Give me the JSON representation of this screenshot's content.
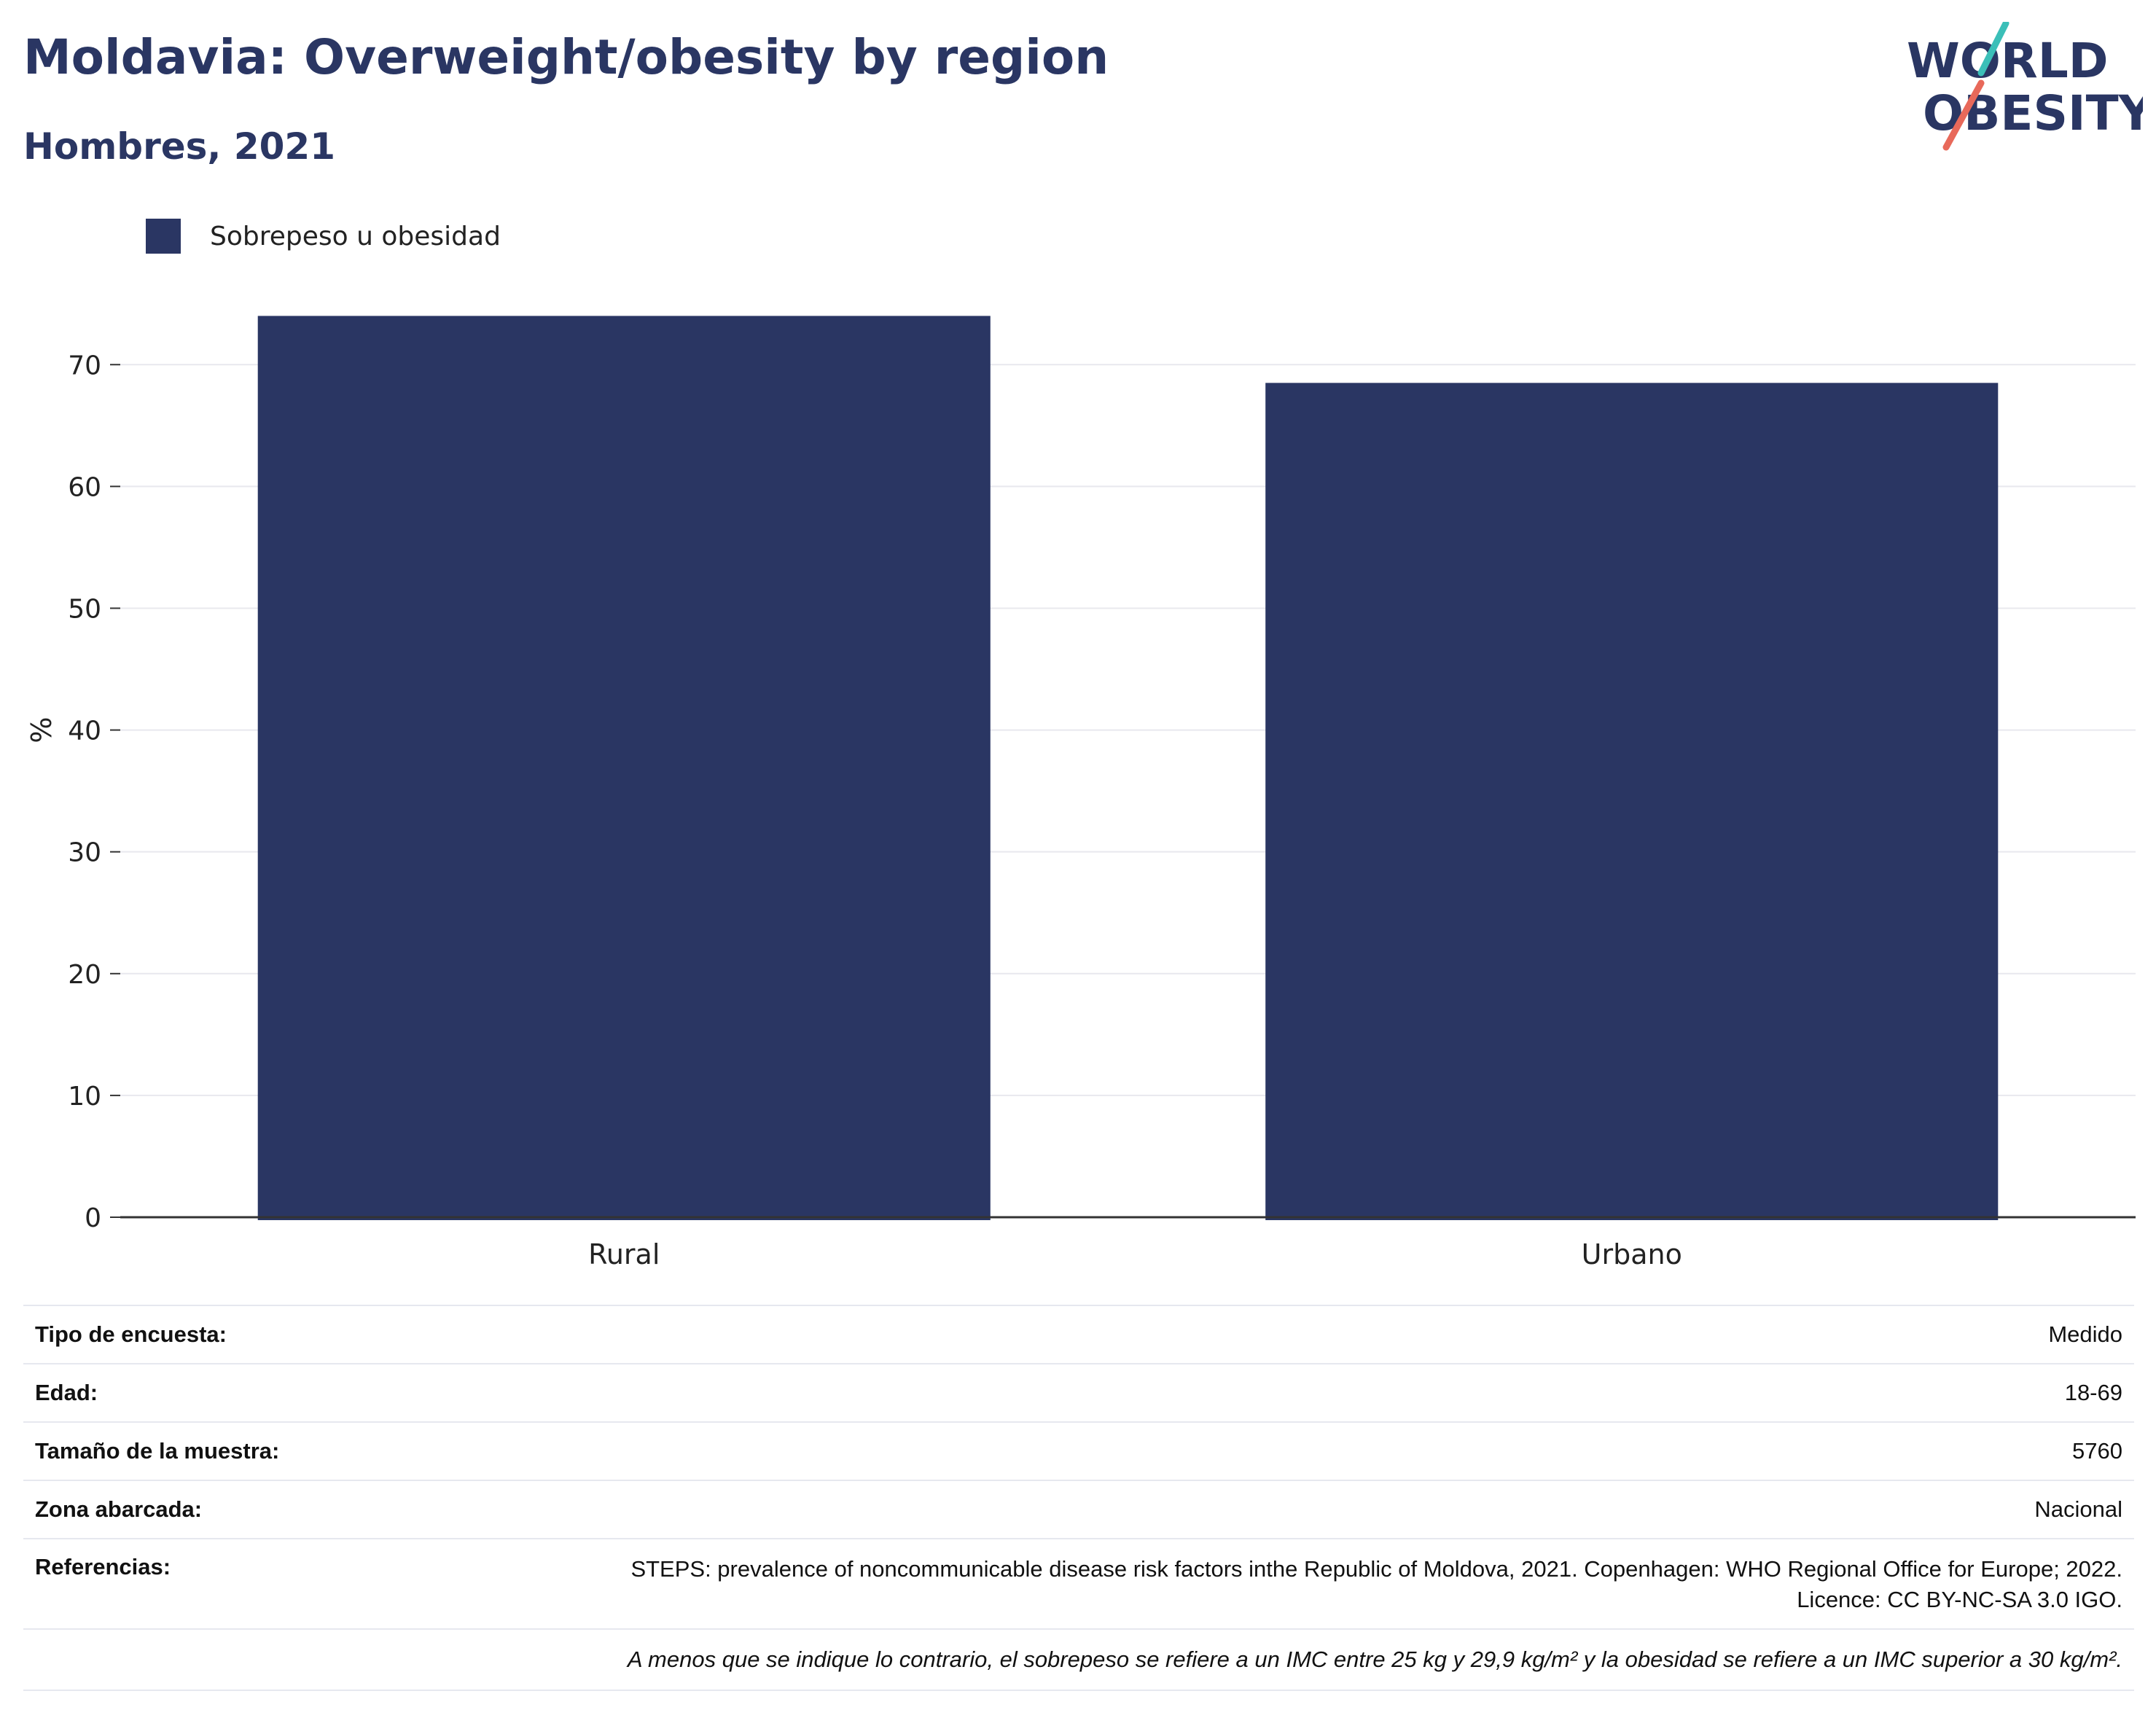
{
  "header": {
    "title": "Moldavia: Overweight/obesity by region",
    "subtitle": "Hombres, 2021"
  },
  "logo": {
    "line1": "WORLD",
    "line2": "OBESITY",
    "colors": {
      "text": "#2a3663",
      "slash_top": "#3bbfb8",
      "slash_bottom": "#e8695a"
    }
  },
  "legend": {
    "label": "Sobrepeso u obesidad",
    "color": "#2a3663"
  },
  "chart_data": {
    "type": "bar",
    "categories": [
      "Rural",
      "Urbano"
    ],
    "series": [
      {
        "name": "Sobrepeso u obesidad",
        "values": [
          74.0,
          68.5
        ],
        "color": "#2a3663"
      }
    ],
    "title": "Moldavia: Overweight/obesity by region",
    "subtitle": "Hombres, 2021",
    "xlabel": "",
    "ylabel": "%",
    "ylim": [
      0,
      76
    ],
    "yticks": [
      0,
      10,
      20,
      30,
      40,
      50,
      60,
      70
    ],
    "grid": true,
    "legend_position": "top-left"
  },
  "info": {
    "rows": [
      {
        "label": "Tipo de encuesta:",
        "value": "Medido"
      },
      {
        "label": "Edad:",
        "value": "18-69"
      },
      {
        "label": "Tamaño de la muestra:",
        "value": "5760"
      },
      {
        "label": "Zona abarcada:",
        "value": "Nacional"
      },
      {
        "label": "Referencias:",
        "value": "STEPS: prevalence of noncommunicable disease risk factors inthe Republic of Moldova, 2021. Copenhagen: WHO Regional Office for Europe; 2022. Licence: CC BY-NC-SA 3.0 IGO."
      }
    ],
    "note": "A menos que se indique lo contrario, el sobrepeso se refiere a un IMC entre 25 kg y 29,9 kg/m² y la obesidad se refiere a un IMC superior a 30 kg/m²."
  }
}
